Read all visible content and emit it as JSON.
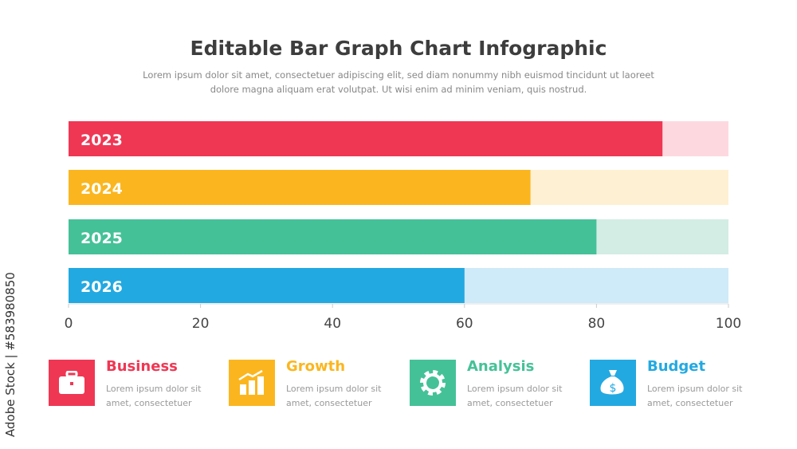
{
  "header": {
    "title": "Editable Bar Graph Chart Infographic",
    "subtitle": "Lorem ipsum dolor sit amet, consectetuer adipiscing elit, sed diam nonummy nibh euismod tincidunt ut laoreet dolore magna aliquam erat volutpat. Ut wisi enim ad minim veniam, quis nostrud."
  },
  "chart_data": {
    "type": "bar",
    "orientation": "horizontal",
    "categories": [
      "2023",
      "2024",
      "2025",
      "2026"
    ],
    "values": [
      90,
      70,
      80,
      60
    ],
    "xlim": [
      0,
      100
    ],
    "xticks": [
      0,
      20,
      40,
      60,
      80,
      100
    ],
    "grid": false,
    "colors": [
      "#EF3754",
      "#FBB61F",
      "#45C198",
      "#23A9E1"
    ],
    "track_colors": [
      "#FDD9DF",
      "#FEF0D2",
      "#D3EDE4",
      "#CFEAF8"
    ]
  },
  "cards": [
    {
      "title": "Business",
      "text": "Lorem ipsum dolor sit amet, consectetuer",
      "color": "#EF3754",
      "icon": "briefcase-icon"
    },
    {
      "title": "Growth",
      "text": "Lorem ipsum dolor sit amet, consectetuer",
      "color": "#FBB61F",
      "icon": "growth-chart-icon"
    },
    {
      "title": "Analysis",
      "text": "Lorem ipsum dolor sit amet, consectetuer",
      "color": "#45C198",
      "icon": "gear-icon"
    },
    {
      "title": "Budget",
      "text": "Lorem ipsum dolor sit amet, consectetuer",
      "color": "#23A9E1",
      "icon": "money-bag-icon"
    }
  ],
  "watermark": "Adobe Stock | #583980850"
}
